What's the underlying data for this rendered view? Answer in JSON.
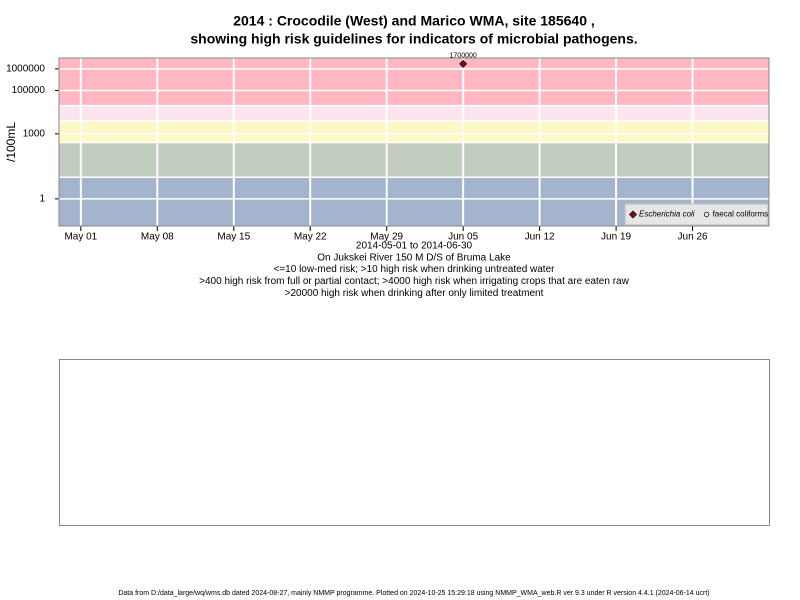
{
  "chart_data": {
    "type": "scatter",
    "title": "2014 : Crocodile (West) and Marico WMA, site 185640 ,",
    "title_line2": "showing high risk guidelines for indicators of microbial pathogens.",
    "subtitle_lines": [
      "2014-05-01 to 2014-06-30",
      "On Jukskei River 150 M D/S of Bruma Lake",
      "<=10 low-med risk; >10 high risk when drinking untreated water",
      ">400 high risk from full or partial contact; >4000 high risk when irrigating crops that are eaten raw",
      ">20000 high risk when drinking after only limited treatment"
    ],
    "y_label": "/100mL",
    "log_y": true,
    "ylim": [
      0.056,
      3160000
    ],
    "yticks": [
      1,
      1000,
      100000,
      1000000
    ],
    "xlim": [
      "2014-04-29",
      "2014-07-03"
    ],
    "xticks": [
      {
        "value": "2014-05-01",
        "label": "May 01"
      },
      {
        "value": "2014-05-08",
        "label": "May 08"
      },
      {
        "value": "2014-05-15",
        "label": "May 15"
      },
      {
        "value": "2014-05-22",
        "label": "May 22"
      },
      {
        "value": "2014-05-29",
        "label": "May 29"
      },
      {
        "value": "2014-06-05",
        "label": "Jun 05"
      },
      {
        "value": "2014-06-12",
        "label": "Jun 12"
      },
      {
        "value": "2014-06-19",
        "label": "Jun 19"
      },
      {
        "value": "2014-06-26",
        "label": "Jun 26"
      }
    ],
    "band_breaks": [
      10,
      400,
      4000,
      20000
    ],
    "band_colors": [
      "#a3b4cc",
      "#c3ccc0",
      "#fdf8c6",
      "#fbe6ef",
      "#ffb7c2"
    ],
    "grid": true,
    "legend_position": "bottom-right",
    "series": [
      {
        "name": "Escherichia coli",
        "color": "#7a1020",
        "marker": "diamond",
        "x": [
          "2014-06-05"
        ],
        "values": [
          1700000
        ]
      },
      {
        "name": "faecal coliforms",
        "color": "#333333",
        "marker": "circle",
        "x": [],
        "values": []
      }
    ],
    "footer": "Data from D:/data_large/wq/wms.db dated 2024-08-27, mainly NMMP programme. Plotted on 2024-10-25 15:29:18 using NMMP_WMA_web.R ver 9.3 under R version 4.4.1 (2024-06-14 ucrt)"
  }
}
